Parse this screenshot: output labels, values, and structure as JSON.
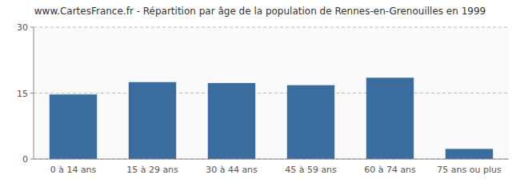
{
  "chart_data": {
    "type": "bar",
    "title": "www.CartesFrance.fr - Répartition par âge de la population de Rennes-en-Grenouilles en 1999",
    "categories": [
      "0 à 14 ans",
      "15 à 29 ans",
      "30 à 44 ans",
      "45 à 59 ans",
      "60 à 74 ans",
      "75 ans ou plus"
    ],
    "values": [
      14.7,
      17.5,
      17.3,
      16.8,
      18.5,
      2.3
    ],
    "color": "#3a6d9e",
    "ylim": [
      0,
      30
    ],
    "yticks": [
      0,
      15,
      30
    ],
    "grid": true
  }
}
